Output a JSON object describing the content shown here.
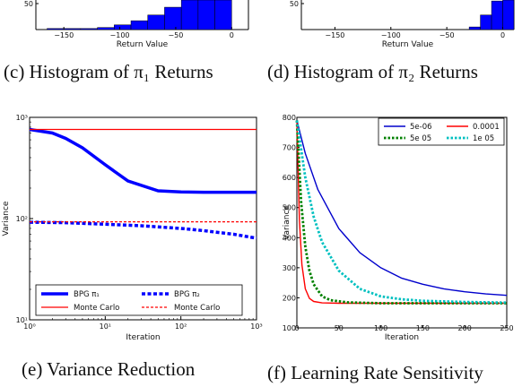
{
  "captions": {
    "c": "(c) Histogram of π₁ Returns",
    "d": "(d) Histogram of π₂ Returns",
    "e": "(e) Variance Reduction",
    "f": "(f) Learning Rate Sensitivity"
  },
  "chart_data": [
    {
      "id": "c",
      "type": "bar",
      "title": "(c) Histogram of π₁ Returns",
      "xlabel": "Return Value",
      "ylabel": "",
      "xlim": [
        -175,
        15
      ],
      "xticks": [
        -150,
        -100,
        -50,
        0
      ],
      "yticks_visible": [
        50
      ],
      "bins_x": [
        -165,
        -150,
        -135,
        -120,
        -105,
        -90,
        -75,
        -60,
        -45,
        -30,
        -15,
        0
      ],
      "bin_width": 15,
      "values": [
        2,
        2,
        2,
        4,
        9,
        17,
        28,
        43,
        90,
        95,
        95,
        0
      ],
      "color": "#0000ff"
    },
    {
      "id": "d",
      "type": "bar",
      "title": "(d) Histogram of π₂ Returns",
      "xlabel": "Return Value",
      "ylabel": "",
      "xlim": [
        -180,
        10
      ],
      "xticks": [
        -150,
        -100,
        -50,
        0
      ],
      "yticks_visible": [
        50
      ],
      "bins_x": [
        -30,
        -20,
        -10,
        0
      ],
      "bin_width": 10,
      "values": [
        5,
        28,
        55,
        65
      ],
      "color": "#0000ff"
    },
    {
      "id": "e",
      "type": "line",
      "title": "(e) Variance Reduction",
      "xlabel": "Iteration",
      "ylabel": "Variance",
      "xscale": "log",
      "yscale": "log",
      "xlim": [
        1,
        1000
      ],
      "ylim": [
        10,
        1000
      ],
      "xtick_labels": [
        "10⁰",
        "10¹",
        "10²",
        "10³"
      ],
      "ytick_labels": [
        "10¹",
        "10²",
        "10³"
      ],
      "legend_position": "lower-left",
      "series": [
        {
          "name": "BPG π₁",
          "color": "#0000ff",
          "style": "solid-thick",
          "x": [
            1,
            2,
            3,
            5,
            10,
            20,
            50,
            100,
            200,
            500,
            1000
          ],
          "y": [
            760,
            700,
            620,
            500,
            340,
            235,
            188,
            183,
            182,
            182,
            182
          ]
        },
        {
          "name": "Monte Carlo",
          "color": "#ff0000",
          "style": "solid",
          "x": [
            1,
            1000
          ],
          "y": [
            760,
            760
          ]
        },
        {
          "name": "BPG π₂",
          "color": "#0000ff",
          "style": "dotted-thick",
          "x": [
            1,
            3,
            10,
            30,
            100,
            200,
            500,
            1000
          ],
          "y": [
            92,
            91,
            88,
            85,
            80,
            76,
            70,
            64
          ]
        },
        {
          "name": "Monte Carlo",
          "color": "#ff0000",
          "style": "dashed",
          "x": [
            1,
            1000
          ],
          "y": [
            93,
            93
          ]
        }
      ]
    },
    {
      "id": "f",
      "type": "line",
      "title": "(f) Learning Rate Sensitivity",
      "xlabel": "Iteration",
      "ylabel": "Variance",
      "xlim": [
        0,
        250
      ],
      "ylim": [
        100,
        800
      ],
      "xticks": [
        0,
        50,
        100,
        150,
        200,
        250
      ],
      "yticks": [
        100,
        200,
        300,
        400,
        500,
        600,
        700,
        800
      ],
      "grid": false,
      "legend_position": "top-right",
      "series": [
        {
          "name": "5e-06",
          "color": "#0000cc",
          "style": "solid",
          "x": [
            0,
            10,
            25,
            50,
            75,
            100,
            125,
            150,
            175,
            200,
            225,
            250
          ],
          "y": [
            790,
            680,
            560,
            430,
            350,
            300,
            265,
            245,
            230,
            220,
            213,
            208
          ]
        },
        {
          "name": "0.0001",
          "color": "#ff0000",
          "style": "solid",
          "x": [
            0,
            3,
            6,
            10,
            15,
            20,
            30,
            50,
            100,
            250
          ],
          "y": [
            790,
            460,
            310,
            230,
            198,
            188,
            183,
            182,
            182,
            182
          ]
        },
        {
          "name": "5e 05",
          "color": "#008000",
          "style": "dotted",
          "x": [
            0,
            5,
            10,
            15,
            20,
            30,
            40,
            60,
            100,
            250
          ],
          "y": [
            790,
            520,
            370,
            290,
            245,
            205,
            192,
            185,
            182,
            182
          ]
        },
        {
          "name": "1e 05",
          "color": "#00c0c0",
          "style": "dotted",
          "x": [
            0,
            10,
            20,
            30,
            50,
            75,
            100,
            125,
            150,
            200,
            250
          ],
          "y": [
            790,
            600,
            470,
            385,
            290,
            230,
            205,
            195,
            190,
            186,
            184
          ]
        }
      ]
    }
  ]
}
